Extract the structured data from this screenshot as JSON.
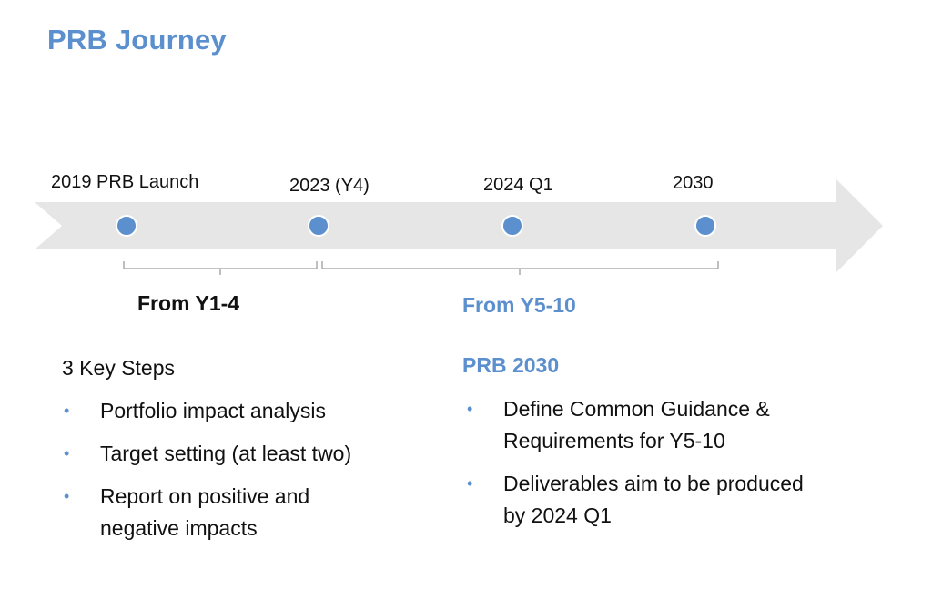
{
  "title": "PRB Journey",
  "timeline": {
    "milestones": [
      {
        "label": "2019 PRB Launch"
      },
      {
        "label": "2023 (Y4)"
      },
      {
        "label": "2024 Q1"
      },
      {
        "label": "2030"
      }
    ]
  },
  "phases": [
    {
      "label": "From Y1-4"
    },
    {
      "label": "From Y5-10"
    }
  ],
  "left_section": {
    "heading": "3 Key Steps",
    "items": [
      {
        "text": "Portfolio impact analysis"
      },
      {
        "text": "Target setting (at least two)"
      },
      {
        "text": "Report on positive and negative impacts"
      }
    ]
  },
  "right_section": {
    "heading": "PRB 2030",
    "items": [
      {
        "text": "Define Common Guidance & Requirements for Y5-10"
      },
      {
        "text": "Deliverables aim to be produced by 2024 Q1"
      }
    ]
  },
  "bullet_glyph": "•",
  "colors": {
    "accent": "#5b8fcd",
    "arrow": "#e6e6e6",
    "dot": "#5b8fcd",
    "bracket": "#9e9e9e"
  }
}
